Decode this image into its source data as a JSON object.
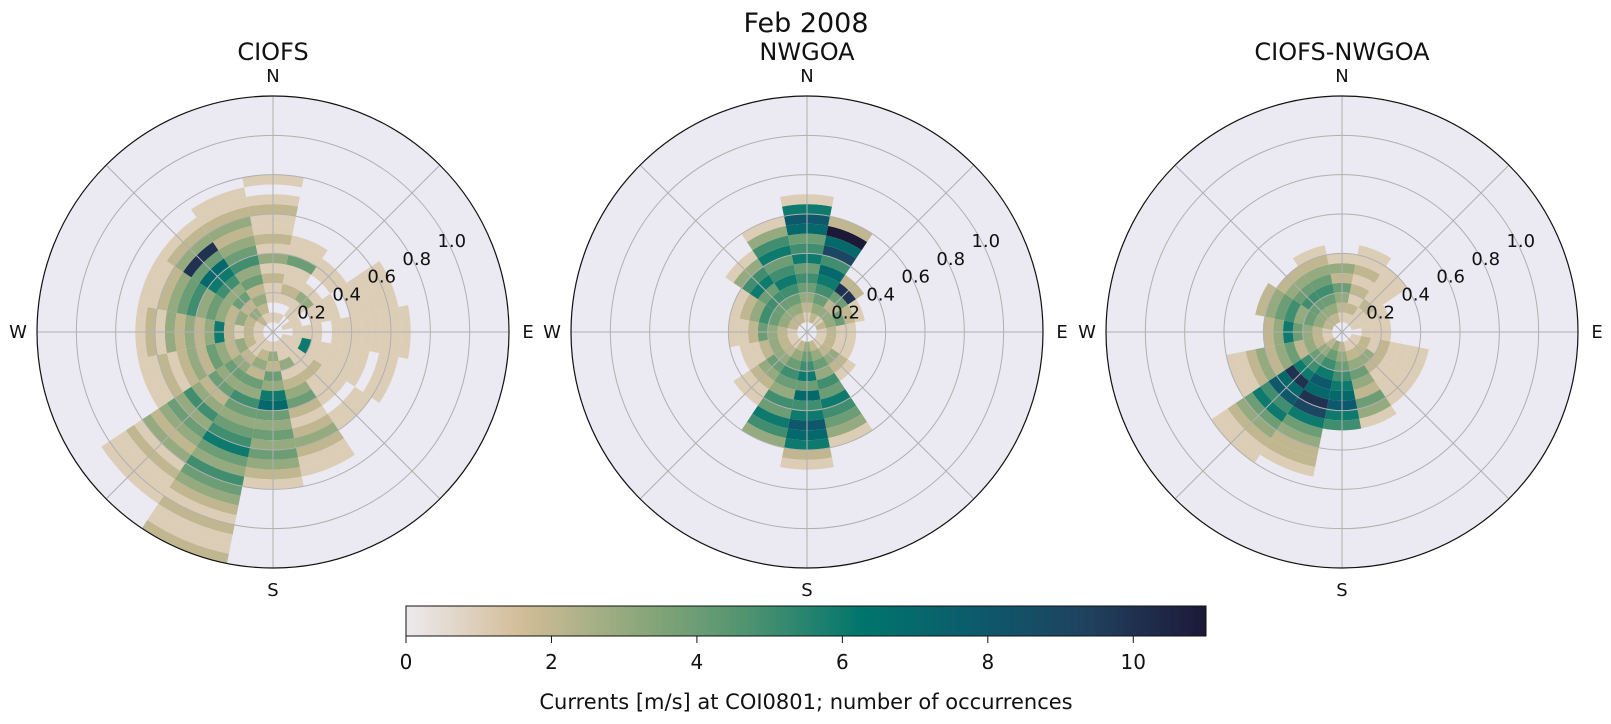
{
  "figure": {
    "suptitle": "Feb 2008"
  },
  "colorbar": {
    "label": "Currents [m/s] at COI0801; number of occurrences",
    "ticks": [
      "0",
      "2",
      "4",
      "6",
      "8",
      "10"
    ],
    "min": 0,
    "max": 11,
    "colormap": [
      "#edeaee",
      "#d3bd98",
      "#8fa87b",
      "#4e9370",
      "#00756c",
      "#0c5a6c",
      "#20405e",
      "#1c1937"
    ]
  },
  "chart_data": [
    {
      "type": "polar-histogram",
      "title": "CIOFS",
      "direction_labels": [
        "N",
        "E",
        "S",
        "W"
      ],
      "radial_ticks": [
        "0.2",
        "0.4",
        "0.6",
        "0.8",
        "1.0"
      ],
      "rlim": [
        0,
        1.2
      ],
      "direction_bins": 16,
      "speed_bin_width": 0.05,
      "grid": true,
      "note": "counts per (direction, speed) bin estimated from the image; max about 10",
      "bins": [
        {
          "dir": 0,
          "rmin": 0.05,
          "rmax": 0.8,
          "counts": [
            1,
            0,
            1,
            1,
            2,
            1,
            3,
            1,
            2,
            1,
            1,
            2,
            1,
            0,
            1
          ]
        },
        {
          "dir": 22.5,
          "rmin": 0.05,
          "rmax": 0.55,
          "counts": [
            1,
            0,
            1,
            2,
            1,
            1,
            4,
            1,
            1,
            0
          ]
        },
        {
          "dir": 45,
          "rmin": 0.05,
          "rmax": 0.45,
          "counts": [
            0,
            1,
            1,
            3,
            1,
            0,
            1,
            1
          ]
        },
        {
          "dir": 67.5,
          "rmin": 0.05,
          "rmax": 0.65,
          "counts": [
            1,
            1,
            0,
            1,
            1,
            1,
            0,
            1,
            1,
            1,
            1,
            1
          ]
        },
        {
          "dir": 90,
          "rmin": 0.05,
          "rmax": 0.7,
          "counts": [
            0,
            1,
            1,
            1,
            0,
            1,
            1,
            1,
            1,
            1,
            1,
            1,
            1
          ]
        },
        {
          "dir": 112.5,
          "rmin": 0.05,
          "rmax": 0.65,
          "counts": [
            1,
            1,
            6,
            1,
            1,
            1,
            1,
            1,
            1,
            0,
            1,
            1
          ]
        },
        {
          "dir": 135,
          "rmin": 0.05,
          "rmax": 0.6,
          "counts": [
            1,
            1,
            1,
            1,
            2,
            1,
            1,
            1,
            0,
            1,
            1
          ]
        },
        {
          "dir": 157.5,
          "rmin": 0.05,
          "rmax": 0.75,
          "counts": [
            1,
            1,
            3,
            1,
            2,
            3,
            4,
            2,
            1,
            2,
            3,
            2,
            1,
            1
          ]
        },
        {
          "dir": 180,
          "rmin": 0.05,
          "rmax": 0.8,
          "counts": [
            1,
            3,
            2,
            4,
            3,
            6,
            7,
            4,
            3,
            4,
            3,
            4,
            3,
            2,
            1
          ]
        },
        {
          "dir": 202.5,
          "rmin": 0.05,
          "rmax": 1.2,
          "counts": [
            1,
            2,
            3,
            2,
            4,
            3,
            5,
            4,
            3,
            4,
            5,
            6,
            4,
            3,
            5,
            4,
            3,
            2,
            1,
            2,
            1,
            1,
            2
          ]
        },
        {
          "dir": 225,
          "rmin": 0.05,
          "rmax": 1.05,
          "counts": [
            1,
            1,
            2,
            3,
            4,
            3,
            4,
            2,
            3,
            5,
            3,
            4,
            3,
            2,
            3,
            1,
            2,
            1,
            1,
            1
          ]
        },
        {
          "dir": 247.5,
          "rmin": 0.05,
          "rmax": 0.7,
          "counts": [
            1,
            2,
            3,
            2,
            3,
            4,
            2,
            3,
            2,
            1,
            2,
            1,
            1
          ]
        },
        {
          "dir": 270,
          "rmin": 0.05,
          "rmax": 0.7,
          "counts": [
            1,
            2,
            1,
            2,
            6,
            3,
            2,
            3,
            2,
            3,
            1,
            2,
            1
          ]
        },
        {
          "dir": 292.5,
          "rmin": 0.05,
          "rmax": 0.7,
          "counts": [
            1,
            2,
            3,
            2,
            3,
            4,
            3,
            5,
            4,
            3,
            2,
            1,
            1
          ]
        },
        {
          "dir": 315,
          "rmin": 0.05,
          "rmax": 0.7,
          "counts": [
            2,
            3,
            2,
            4,
            3,
            5,
            6,
            7,
            4,
            10,
            3,
            2,
            1
          ]
        },
        {
          "dir": 337.5,
          "rmin": 0.05,
          "rmax": 0.75,
          "counts": [
            1,
            2,
            3,
            2,
            4,
            3,
            5,
            4,
            3,
            2,
            3,
            2,
            1,
            1
          ]
        }
      ]
    },
    {
      "type": "polar-histogram",
      "title": "NWGOA",
      "direction_labels": [
        "N",
        "E",
        "S",
        "W"
      ],
      "radial_ticks": [
        "0.2",
        "0.4",
        "0.6",
        "0.8",
        "1.0"
      ],
      "rlim": [
        0,
        1.2
      ],
      "direction_bins": 16,
      "speed_bin_width": 0.05,
      "grid": true,
      "note": "counts per (direction, speed) bin estimated from the image; max about 11",
      "bins": [
        {
          "dir": 0,
          "rmin": 0.05,
          "rmax": 0.7,
          "counts": [
            1,
            2,
            3,
            4,
            5,
            4,
            6,
            5,
            4,
            7,
            8,
            6,
            1
          ]
        },
        {
          "dir": 22.5,
          "rmin": 0.05,
          "rmax": 0.6,
          "counts": [
            2,
            3,
            4,
            5,
            6,
            7,
            5,
            9,
            7,
            11,
            2
          ]
        },
        {
          "dir": 45,
          "rmin": 0.05,
          "rmax": 0.35,
          "counts": [
            1,
            3,
            2,
            4,
            10,
            2
          ]
        },
        {
          "dir": 67.5,
          "rmin": 0.05,
          "rmax": 0.3,
          "counts": [
            2,
            3,
            4,
            2,
            1
          ]
        },
        {
          "dir": 90,
          "rmin": 0.05,
          "rmax": 0.25,
          "counts": [
            1,
            2,
            1,
            1
          ]
        },
        {
          "dir": 112.5,
          "rmin": 0.05,
          "rmax": 0.25,
          "counts": [
            1,
            2,
            1,
            1
          ]
        },
        {
          "dir": 135,
          "rmin": 0.05,
          "rmax": 0.3,
          "counts": [
            1,
            2,
            3,
            2,
            1
          ]
        },
        {
          "dir": 157.5,
          "rmin": 0.05,
          "rmax": 0.6,
          "counts": [
            2,
            3,
            4,
            3,
            5,
            4,
            6,
            5,
            4,
            3,
            1
          ]
        },
        {
          "dir": 180,
          "rmin": 0.05,
          "rmax": 0.7,
          "counts": [
            3,
            4,
            5,
            6,
            4,
            7,
            5,
            6,
            8,
            7,
            6,
            2,
            1
          ]
        },
        {
          "dir": 202.5,
          "rmin": 0.05,
          "rmax": 0.6,
          "counts": [
            2,
            3,
            4,
            5,
            4,
            3,
            5,
            4,
            6,
            5,
            3
          ]
        },
        {
          "dir": 225,
          "rmin": 0.05,
          "rmax": 0.45,
          "counts": [
            1,
            2,
            3,
            4,
            3,
            2,
            1,
            1
          ]
        },
        {
          "dir": 247.5,
          "rmin": 0.05,
          "rmax": 0.35,
          "counts": [
            1,
            2,
            3,
            2,
            1,
            1
          ]
        },
        {
          "dir": 270,
          "rmin": 0.05,
          "rmax": 0.4,
          "counts": [
            1,
            2,
            3,
            4,
            2,
            1,
            1
          ]
        },
        {
          "dir": 292.5,
          "rmin": 0.05,
          "rmax": 0.4,
          "counts": [
            2,
            3,
            4,
            5,
            3,
            2,
            1
          ]
        },
        {
          "dir": 315,
          "rmin": 0.05,
          "rmax": 0.5,
          "counts": [
            2,
            3,
            4,
            5,
            4,
            6,
            5,
            3,
            1
          ]
        },
        {
          "dir": 337.5,
          "rmin": 0.05,
          "rmax": 0.6,
          "counts": [
            2,
            3,
            4,
            5,
            6,
            5,
            4,
            6,
            5,
            3,
            1
          ]
        }
      ]
    },
    {
      "type": "polar-histogram",
      "title": "CIOFS-NWGOA",
      "direction_labels": [
        "N",
        "E",
        "S",
        "W"
      ],
      "radial_ticks": [
        "0.2",
        "0.4",
        "0.6",
        "0.8",
        "1.0"
      ],
      "rlim": [
        0,
        1.2
      ],
      "direction_bins": 16,
      "speed_bin_width": 0.05,
      "grid": true,
      "note": "counts per (direction, speed) bin estimated from the image; max about 10",
      "bins": [
        {
          "dir": 0,
          "rmin": 0.05,
          "rmax": 0.4,
          "counts": [
            1,
            2,
            3,
            4,
            2,
            3,
            1
          ]
        },
        {
          "dir": 22.5,
          "rmin": 0.05,
          "rmax": 0.45,
          "counts": [
            1,
            2,
            1,
            2,
            1,
            2,
            1,
            1
          ]
        },
        {
          "dir": 45,
          "rmin": 0.05,
          "rmax": 0.4,
          "counts": [
            1,
            1,
            2,
            1,
            1,
            1,
            1
          ]
        },
        {
          "dir": 67.5,
          "rmin": 0.05,
          "rmax": 0.25,
          "counts": [
            1,
            1,
            1,
            1
          ]
        },
        {
          "dir": 90,
          "rmin": 0.05,
          "rmax": 0.25,
          "counts": [
            0,
            1,
            1,
            1
          ]
        },
        {
          "dir": 112.5,
          "rmin": 0.05,
          "rmax": 0.45,
          "counts": [
            1,
            2,
            1,
            2,
            1,
            1,
            1,
            1
          ]
        },
        {
          "dir": 135,
          "rmin": 0.05,
          "rmax": 0.45,
          "counts": [
            1,
            2,
            3,
            2,
            1,
            1,
            1,
            1
          ]
        },
        {
          "dir": 157.5,
          "rmin": 0.05,
          "rmax": 0.5,
          "counts": [
            1,
            2,
            3,
            4,
            3,
            2,
            4,
            3,
            1
          ]
        },
        {
          "dir": 180,
          "rmin": 0.05,
          "rmax": 0.5,
          "counts": [
            2,
            3,
            4,
            5,
            6,
            7,
            8,
            6,
            5
          ]
        },
        {
          "dir": 202.5,
          "rmin": 0.05,
          "rmax": 0.75,
          "counts": [
            3,
            4,
            5,
            6,
            8,
            7,
            10,
            9,
            6,
            4,
            3,
            2,
            2,
            1
          ]
        },
        {
          "dir": 225,
          "rmin": 0.05,
          "rmax": 0.8,
          "counts": [
            2,
            3,
            4,
            5,
            6,
            10,
            7,
            8,
            5,
            6,
            4,
            3,
            2,
            1,
            1
          ]
        },
        {
          "dir": 247.5,
          "rmin": 0.05,
          "rmax": 0.6,
          "counts": [
            1,
            2,
            3,
            2,
            4,
            3,
            2,
            3,
            2,
            1,
            1
          ]
        },
        {
          "dir": 270,
          "rmin": 0.05,
          "rmax": 0.4,
          "counts": [
            1,
            2,
            3,
            4,
            6,
            3,
            2
          ]
        },
        {
          "dir": 292.5,
          "rmin": 0.05,
          "rmax": 0.45,
          "counts": [
            2,
            3,
            4,
            3,
            5,
            4,
            3,
            2
          ]
        },
        {
          "dir": 315,
          "rmin": 0.05,
          "rmax": 0.4,
          "counts": [
            2,
            3,
            4,
            5,
            4,
            3,
            2
          ]
        },
        {
          "dir": 337.5,
          "rmin": 0.05,
          "rmax": 0.45,
          "counts": [
            2,
            3,
            4,
            5,
            4,
            3,
            2,
            1
          ]
        }
      ]
    }
  ]
}
